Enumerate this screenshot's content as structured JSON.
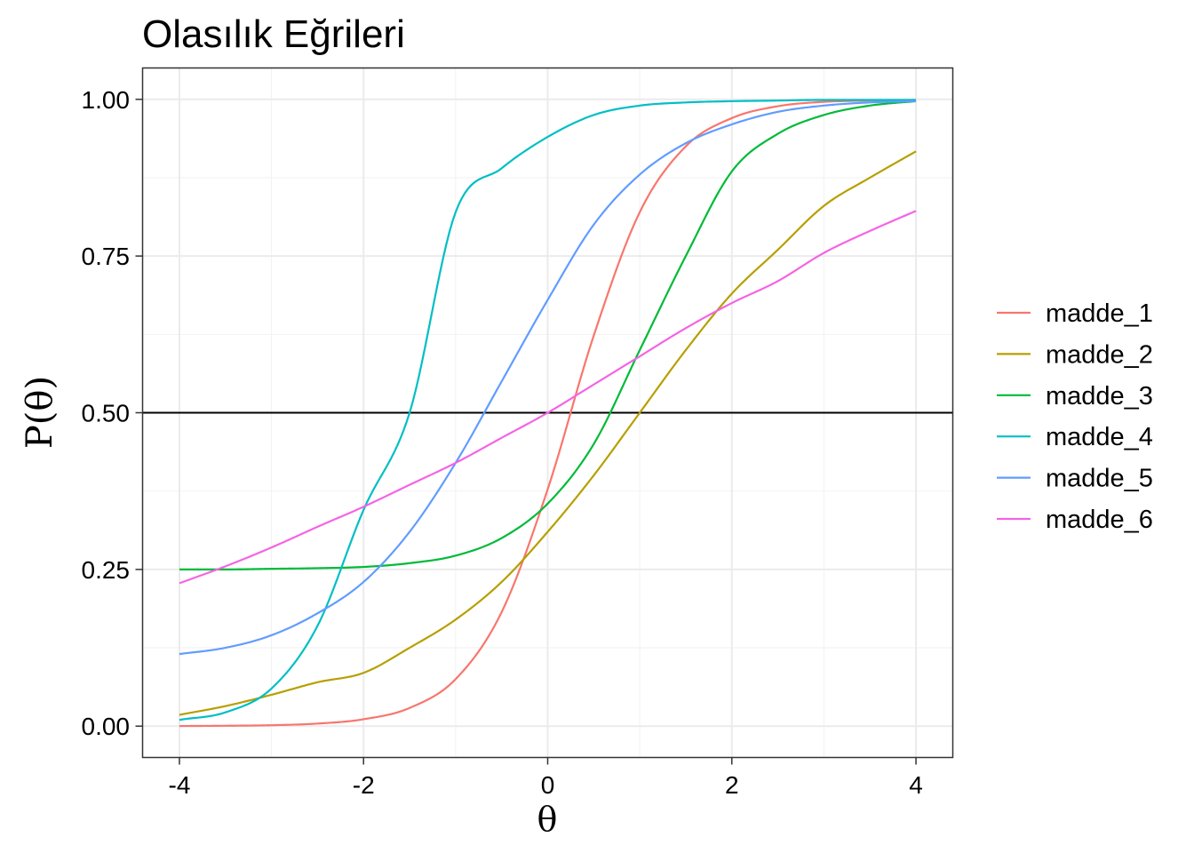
{
  "chart_data": {
    "type": "line",
    "title": "Olasılık Eğrileri",
    "xlabel": "θ",
    "ylabel": "P(θ)",
    "xlim": [
      -4.4,
      4.4
    ],
    "ylim": [
      -0.05,
      1.05
    ],
    "xticks": [
      -4,
      -2,
      0,
      2,
      4
    ],
    "xtick_labels": [
      "-4",
      "-2",
      "0",
      "2",
      "4"
    ],
    "yticks": [
      0,
      0.25,
      0.5,
      0.75,
      1
    ],
    "ytick_labels": [
      "0.00",
      "0.25",
      "0.50",
      "0.75",
      "1.00"
    ],
    "grid": true,
    "legend_position": "right",
    "reference_line": {
      "y": 0.5,
      "color": "#000000"
    },
    "x": [
      -4,
      -3.5,
      -3,
      -2.5,
      -2,
      -1.5,
      -1,
      -0.5,
      0,
      0.5,
      1,
      1.5,
      2,
      2.5,
      3,
      3.5,
      4
    ],
    "series": [
      {
        "name": "madde_1",
        "color": "#F8766D",
        "values": [
          0.0002,
          0.0006,
          0.0015,
          0.0041,
          0.011,
          0.029,
          0.075,
          0.182,
          0.378,
          0.623,
          0.82,
          0.925,
          0.97,
          0.989,
          0.996,
          0.998,
          0.999
        ]
      },
      {
        "name": "madde_2",
        "color": "#B79F00",
        "values": [
          0.018,
          0.032,
          0.05,
          0.07,
          0.085,
          0.125,
          0.17,
          0.23,
          0.31,
          0.4,
          0.5,
          0.6,
          0.69,
          0.76,
          0.83,
          0.875,
          0.917
        ]
      },
      {
        "name": "madde_3",
        "color": "#00BA38",
        "values": [
          0.25,
          0.25,
          0.251,
          0.252,
          0.254,
          0.26,
          0.272,
          0.3,
          0.355,
          0.45,
          0.6,
          0.75,
          0.885,
          0.945,
          0.975,
          0.99,
          0.997
        ]
      },
      {
        "name": "madde_4",
        "color": "#00BFC4",
        "values": [
          0.01,
          0.022,
          0.06,
          0.16,
          0.345,
          0.5,
          0.82,
          0.89,
          0.94,
          0.975,
          0.99,
          0.995,
          0.997,
          0.998,
          0.999,
          0.999,
          0.999
        ]
      },
      {
        "name": "madde_5",
        "color": "#619CFF",
        "values": [
          0.115,
          0.125,
          0.145,
          0.18,
          0.23,
          0.31,
          0.42,
          0.55,
          0.68,
          0.8,
          0.88,
          0.93,
          0.96,
          0.98,
          0.99,
          0.995,
          0.997
        ]
      },
      {
        "name": "madde_6",
        "color": "#F564E3",
        "values": [
          0.228,
          0.255,
          0.285,
          0.318,
          0.35,
          0.385,
          0.42,
          0.46,
          0.5,
          0.545,
          0.59,
          0.635,
          0.675,
          0.71,
          0.755,
          0.79,
          0.822
        ]
      }
    ]
  }
}
